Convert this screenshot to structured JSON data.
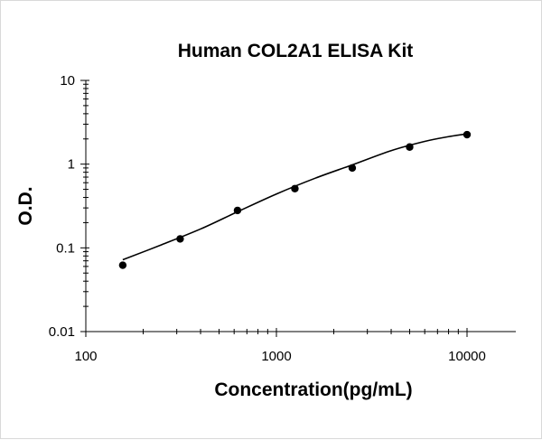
{
  "chart_data": {
    "type": "scatter",
    "title": "Human COL2A1 ELISA Kit",
    "xlabel": "Concentration(pg/mL)",
    "ylabel": "O.D.",
    "x_scale": "log",
    "y_scale": "log",
    "xlim": [
      100,
      10000
    ],
    "ylim": [
      0.01,
      10
    ],
    "x_ticks": [
      "100",
      "1000",
      "10000"
    ],
    "y_ticks": [
      "10",
      "1",
      "0.1",
      "0.01"
    ],
    "grid": false,
    "legend": "none",
    "series": [
      {
        "x": [
          156.25,
          312.5,
          625,
          1250,
          2500,
          5000,
          10000
        ],
        "y": [
          0.062,
          0.128,
          0.28,
          0.51,
          0.9,
          1.6,
          2.25
        ]
      }
    ],
    "fit_curve": {
      "x": [
        156.25,
        250,
        400,
        625,
        1000,
        1600,
        2500,
        4000,
        6000,
        8000,
        10000
      ],
      "y": [
        0.072,
        0.109,
        0.168,
        0.27,
        0.44,
        0.68,
        0.98,
        1.45,
        1.87,
        2.13,
        2.3
      ]
    },
    "colors": {
      "marker": "#000000",
      "line": "#000000"
    }
  }
}
